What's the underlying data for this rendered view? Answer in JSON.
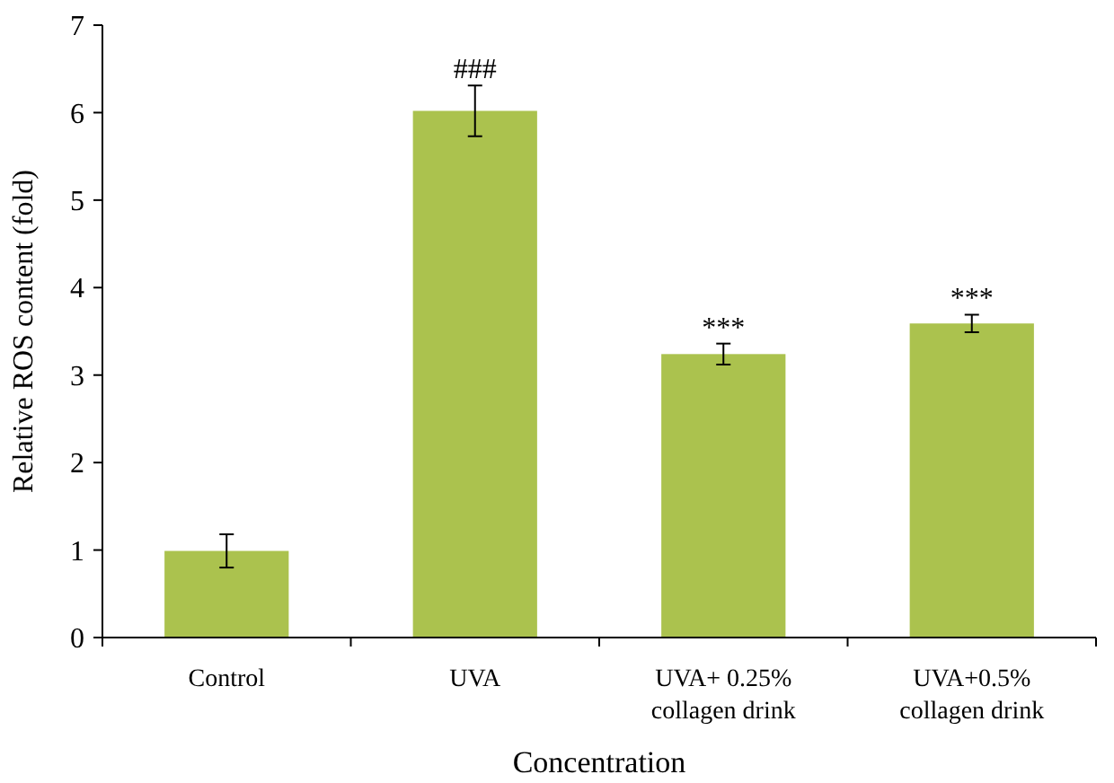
{
  "chart_data": {
    "type": "bar",
    "xlabel": "Concentration",
    "ylabel": "Relative ROS content (fold)",
    "categories": [
      "Control",
      "UVA",
      "UVA+ 0.25%\ncollagen drink",
      "UVA+0.5%\ncollagen drink"
    ],
    "values": [
      0.99,
      6.02,
      3.24,
      3.59
    ],
    "errors": [
      0.19,
      0.29,
      0.12,
      0.1
    ],
    "color": "#abc24e",
    "ylim": [
      0,
      7
    ],
    "yticks": [
      0,
      1,
      2,
      3,
      4,
      5,
      6,
      7
    ],
    "annotations": [
      {
        "text": "###",
        "x": "UVA",
        "y": 6.31
      },
      {
        "text": "***",
        "x": "UVA+ 0.25%\ncollagen drink",
        "y": 3.36
      },
      {
        "text": "***",
        "x": "UVA+0.5%\ncollagen drink",
        "y": 3.69
      }
    ]
  }
}
